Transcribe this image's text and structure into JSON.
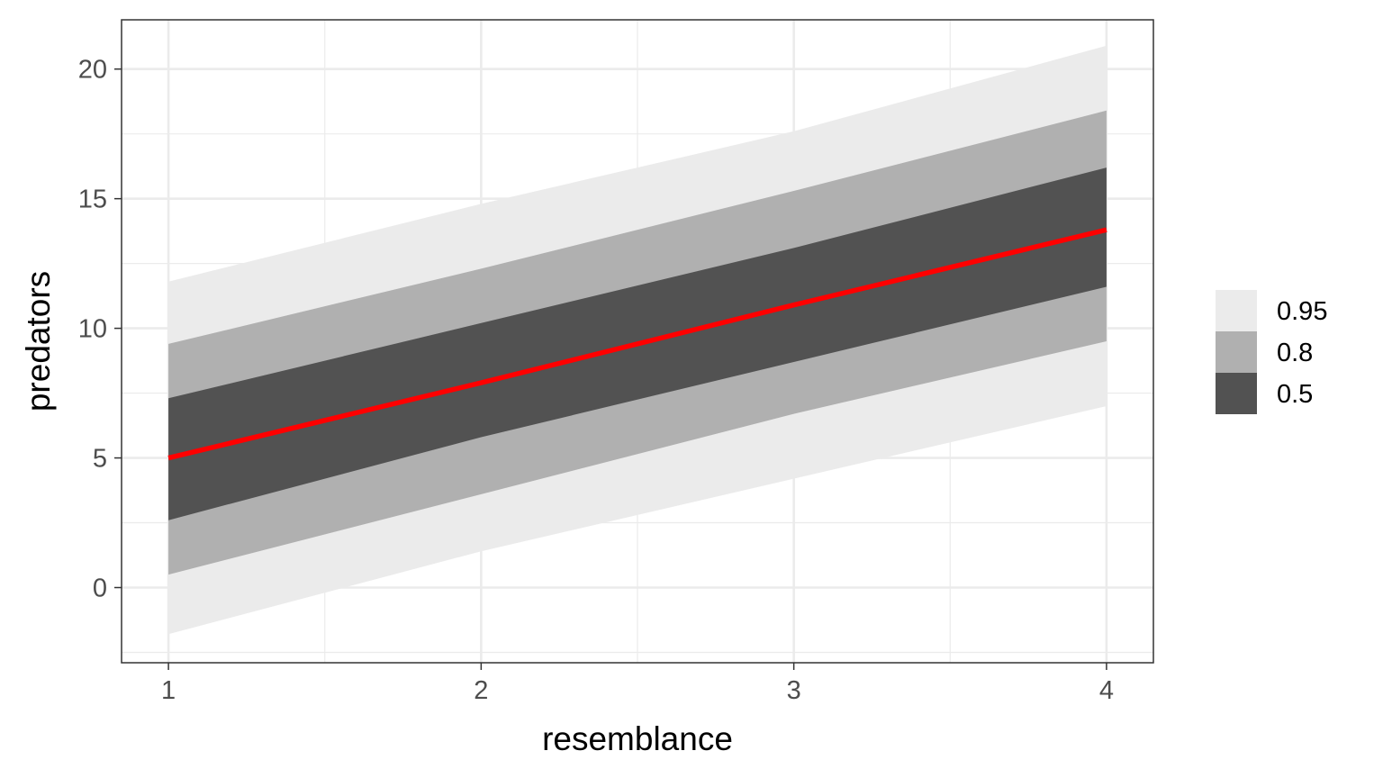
{
  "chart_data": {
    "type": "area",
    "title": "",
    "xlabel": "resemblance",
    "ylabel": "predators",
    "xlim": [
      0.85,
      4.15
    ],
    "ylim": [
      -2.9,
      21.9
    ],
    "x_ticks": [
      1,
      2,
      3,
      4
    ],
    "x_tick_labels": [
      "1",
      "2",
      "3",
      "4"
    ],
    "y_ticks": [
      0,
      5,
      10,
      15,
      20
    ],
    "y_tick_labels": [
      "0",
      "5",
      "10",
      "15",
      "20"
    ],
    "grid": true,
    "x": [
      1,
      2,
      3,
      4
    ],
    "bands": [
      {
        "name": "0.95",
        "color": "#ebebeb",
        "lower": [
          -1.8,
          1.4,
          4.2,
          7.0
        ],
        "upper": [
          11.8,
          14.8,
          17.6,
          20.9
        ]
      },
      {
        "name": "0.8",
        "color": "#b0b0b0",
        "lower": [
          0.5,
          3.6,
          6.7,
          9.5
        ],
        "upper": [
          9.4,
          12.3,
          15.3,
          18.4
        ]
      },
      {
        "name": "0.5",
        "color": "#525252",
        "lower": [
          2.6,
          5.8,
          8.7,
          11.6
        ],
        "upper": [
          7.3,
          10.2,
          13.1,
          16.2
        ]
      }
    ],
    "series": [
      {
        "color": "#ff0000",
        "values": [
          5.0,
          7.9,
          10.9,
          13.8
        ]
      }
    ],
    "legend": {
      "placement": "right",
      "entries": [
        {
          "label": "0.95",
          "color": "#ebebeb"
        },
        {
          "label": "0.8",
          "color": "#b0b0b0"
        },
        {
          "label": "0.5",
          "color": "#525252"
        }
      ]
    }
  }
}
